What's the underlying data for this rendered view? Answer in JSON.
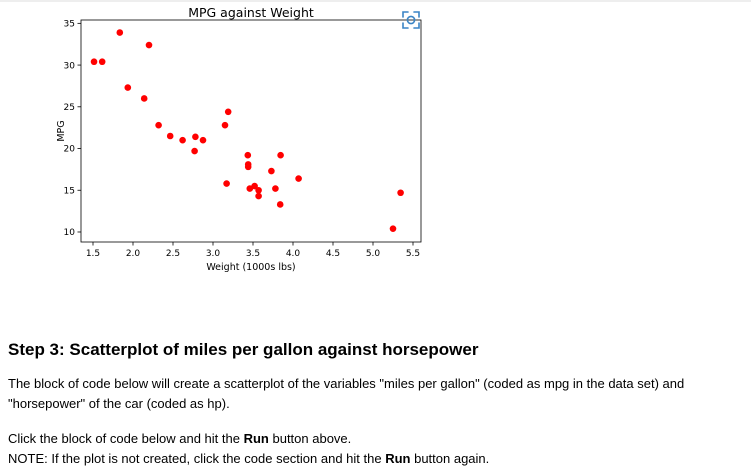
{
  "chart_data": {
    "type": "scatter",
    "title": "MPG against Weight",
    "xlabel": "Weight (1000s lbs)",
    "ylabel": "MPG",
    "xlim": [
      1.35,
      5.6
    ],
    "ylim": [
      8.8,
      35.4
    ],
    "xticks": [
      "1.5",
      "2.0",
      "2.5",
      "3.0",
      "3.5",
      "4.0",
      "4.5",
      "5.0",
      "5.5"
    ],
    "yticks": [
      "10",
      "15",
      "20",
      "25",
      "30",
      "35"
    ],
    "grid": false,
    "point_color": "#ff0000",
    "series": [
      {
        "x": [
          1.513,
          1.615,
          1.835,
          1.935,
          2.14,
          2.2,
          2.32,
          2.465,
          2.62,
          2.77,
          2.78,
          2.875,
          3.15,
          3.17,
          3.19,
          3.435,
          3.44,
          3.44,
          3.46,
          3.52,
          3.57,
          3.57,
          3.73,
          3.78,
          3.84,
          3.845,
          4.07,
          5.25,
          5.345
        ],
        "y": [
          30.4,
          30.4,
          33.9,
          27.3,
          26.0,
          32.4,
          22.8,
          21.5,
          21.0,
          19.7,
          21.4,
          21.0,
          22.8,
          15.8,
          24.4,
          19.2,
          17.8,
          18.1,
          15.2,
          15.5,
          15.0,
          14.3,
          17.3,
          15.2,
          13.3,
          19.2,
          16.4,
          10.4,
          14.7
        ]
      }
    ]
  },
  "toolbar": {
    "expand_icon": "expand-icon"
  },
  "section": {
    "heading": "Step 3: Scatterplot of miles per gallon against horsepower",
    "desc_line1": "The block of code below will create a scatterplot of the variables \"miles per gallon\" (coded as mpg in the data set) and",
    "desc_line2": "\"horsepower\" of the car (coded as hp).",
    "instr_before": "Click the block of code below and hit the ",
    "run_label": "Run",
    "instr_after": " button above.",
    "note_before": "NOTE: If the plot is not created, click the code section and hit the ",
    "run_label_2": "Run",
    "note_after": " button again."
  }
}
